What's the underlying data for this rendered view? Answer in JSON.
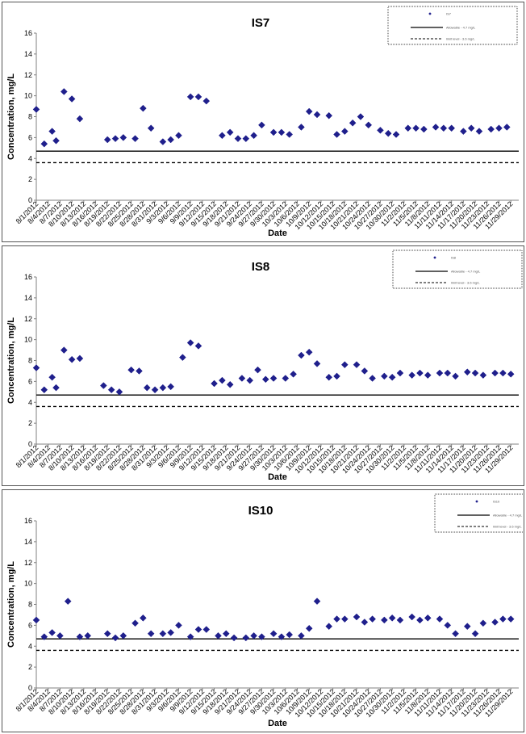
{
  "colors": {
    "marker": "#1f1f8c",
    "axis": "#808080",
    "line": "#000000"
  },
  "chart_data": [
    {
      "type": "scatter",
      "title": "IS7",
      "xlabel": "Date",
      "ylabel": "Concentration, mg/L",
      "ylim": [
        0,
        16
      ],
      "yticks": [
        0,
        2,
        4,
        6,
        8,
        10,
        12,
        14,
        16
      ],
      "grid": false,
      "legend_position": "top-right",
      "legend": [
        "IS7",
        "Allowable - 4.7 mg/L",
        "limit level - 3.6 mg/L"
      ],
      "reference_lines": [
        {
          "name": "Allowable - 4.7 mg/L",
          "value": 4.7,
          "style": "solid"
        },
        {
          "name": "limit level - 3.6 mg/L",
          "value": 3.6,
          "style": "dashed"
        }
      ],
      "xlim": [
        "8/1/2012",
        "12/1/2012"
      ],
      "x_tick_labels": [
        "8/1/2012",
        "8/4/2012",
        "8/7/2012",
        "8/10/2012",
        "8/13/2012",
        "8/16/2012",
        "8/19/2012",
        "8/22/2012",
        "8/25/2012",
        "8/28/2012",
        "8/31/2012",
        "9/3/2012",
        "9/6/2012",
        "9/9/2012",
        "9/12/2012",
        "9/15/2012",
        "9/18/2012",
        "9/21/2012",
        "9/24/2012",
        "9/27/2012",
        "9/30/2012",
        "10/3/2012",
        "10/6/2012",
        "10/9/2012",
        "10/12/2012",
        "10/15/2012",
        "10/18/2012",
        "10/21/2012",
        "10/24/2012",
        "10/27/2012",
        "10/30/2012",
        "11/2/2012",
        "11/5/2012",
        "11/8/2012",
        "11/11/2012",
        "11/14/2012",
        "11/17/2012",
        "11/20/2012",
        "11/23/2012",
        "11/26/2012",
        "11/29/2012"
      ],
      "series": [
        {
          "name": "IS7",
          "x": [
            "8/1/2012",
            "8/3/2012",
            "8/5/2012",
            "8/6/2012",
            "8/8/2012",
            "8/10/2012",
            "8/12/2012",
            "8/19/2012",
            "8/21/2012",
            "8/23/2012",
            "8/26/2012",
            "8/28/2012",
            "8/30/2012",
            "9/2/2012",
            "9/4/2012",
            "9/6/2012",
            "9/9/2012",
            "9/11/2012",
            "9/13/2012",
            "9/17/2012",
            "9/19/2012",
            "9/21/2012",
            "9/23/2012",
            "9/25/2012",
            "9/27/2012",
            "9/30/2012",
            "10/2/2012",
            "10/4/2012",
            "10/7/2012",
            "10/9/2012",
            "10/11/2012",
            "10/14/2012",
            "10/16/2012",
            "10/18/2012",
            "10/20/2012",
            "10/22/2012",
            "10/24/2012",
            "10/27/2012",
            "10/29/2012",
            "10/31/2012",
            "11/3/2012",
            "11/5/2012",
            "11/7/2012",
            "11/10/2012",
            "11/12/2012",
            "11/14/2012",
            "11/17/2012",
            "11/19/2012",
            "11/21/2012",
            "11/24/2012",
            "11/26/2012",
            "11/28/2012"
          ],
          "y": [
            8.7,
            5.4,
            6.6,
            5.7,
            10.4,
            9.7,
            7.8,
            5.8,
            5.9,
            6.0,
            5.9,
            8.8,
            6.9,
            5.6,
            5.8,
            6.2,
            9.9,
            9.9,
            9.5,
            6.2,
            6.5,
            5.9,
            5.9,
            6.2,
            7.2,
            6.5,
            6.5,
            6.3,
            7.0,
            8.5,
            8.2,
            8.1,
            6.3,
            6.6,
            7.4,
            8.0,
            7.2,
            6.7,
            6.4,
            6.3,
            6.9,
            6.9,
            6.8,
            7.0,
            6.9,
            6.9,
            6.6,
            6.9,
            6.6,
            6.8,
            6.9,
            7.0
          ]
        }
      ]
    },
    {
      "type": "scatter",
      "title": "IS8",
      "xlabel": "Date",
      "ylabel": "Concentration, mg/L",
      "ylim": [
        0,
        16
      ],
      "yticks": [
        0,
        2,
        4,
        6,
        8,
        10,
        12,
        14,
        16
      ],
      "grid": false,
      "legend_position": "top-right",
      "legend": [
        "IS8",
        "Allowable - 4.7 mg/L",
        "limit level - 3.6 mg/L"
      ],
      "reference_lines": [
        {
          "name": "Allowable - 4.7 mg/L",
          "value": 4.7,
          "style": "solid"
        },
        {
          "name": "limit level - 3.6 mg/L",
          "value": 3.6,
          "style": "dashed"
        }
      ],
      "xlim": [
        "8/1/2012",
        "12/1/2012"
      ],
      "x_tick_labels": [
        "8/1/2012",
        "8/4/2012",
        "8/7/2012",
        "8/10/2012",
        "8/13/2012",
        "8/16/2012",
        "8/19/2012",
        "8/22/2012",
        "8/25/2012",
        "8/28/2012",
        "8/31/2012",
        "9/3/2012",
        "9/6/2012",
        "9/9/2012",
        "9/12/2012",
        "9/15/2012",
        "9/18/2012",
        "9/21/2012",
        "9/24/2012",
        "9/27/2012",
        "9/30/2012",
        "10/3/2012",
        "10/6/2012",
        "10/9/2012",
        "10/12/2012",
        "10/15/2012",
        "10/18/2012",
        "10/21/2012",
        "10/24/2012",
        "10/27/2012",
        "10/30/2012",
        "11/2/2012",
        "11/5/2012",
        "11/8/2012",
        "11/11/2012",
        "11/14/2012",
        "11/17/2012",
        "11/20/2012",
        "11/23/2012",
        "11/26/2012",
        "11/29/2012"
      ],
      "series": [
        {
          "name": "IS8",
          "x": [
            "8/1/2012",
            "8/3/2012",
            "8/5/2012",
            "8/6/2012",
            "8/8/2012",
            "8/10/2012",
            "8/12/2012",
            "8/18/2012",
            "8/20/2012",
            "8/22/2012",
            "8/25/2012",
            "8/27/2012",
            "8/29/2012",
            "8/31/2012",
            "9/2/2012",
            "9/4/2012",
            "9/7/2012",
            "9/9/2012",
            "9/11/2012",
            "9/15/2012",
            "9/17/2012",
            "9/19/2012",
            "9/22/2012",
            "9/24/2012",
            "9/26/2012",
            "9/28/2012",
            "9/30/2012",
            "10/3/2012",
            "10/5/2012",
            "10/7/2012",
            "10/9/2012",
            "10/11/2012",
            "10/14/2012",
            "10/16/2012",
            "10/18/2012",
            "10/21/2012",
            "10/23/2012",
            "10/25/2012",
            "10/28/2012",
            "10/30/2012",
            "11/1/2012",
            "11/4/2012",
            "11/6/2012",
            "11/8/2012",
            "11/11/2012",
            "11/13/2012",
            "11/15/2012",
            "11/18/2012",
            "11/20/2012",
            "11/22/2012",
            "11/25/2012",
            "11/27/2012",
            "11/29/2012"
          ],
          "y": [
            7.3,
            5.2,
            6.4,
            5.4,
            9.0,
            8.1,
            8.2,
            5.6,
            5.2,
            5.0,
            7.1,
            7.0,
            5.4,
            5.2,
            5.4,
            5.5,
            8.3,
            9.7,
            9.4,
            5.8,
            6.1,
            5.7,
            6.3,
            6.1,
            7.1,
            6.2,
            6.3,
            6.3,
            6.7,
            8.5,
            8.8,
            7.7,
            6.4,
            6.5,
            7.6,
            7.6,
            7.0,
            6.3,
            6.5,
            6.4,
            6.8,
            6.6,
            6.8,
            6.6,
            6.8,
            6.8,
            6.5,
            6.9,
            6.8,
            6.6,
            6.8,
            6.8,
            6.7
          ]
        }
      ]
    },
    {
      "type": "scatter",
      "title": "IS10",
      "xlabel": "Date",
      "ylabel": "Concentration, mg/L",
      "ylim": [
        0,
        16
      ],
      "yticks": [
        0,
        2,
        4,
        6,
        8,
        10,
        12,
        14,
        16
      ],
      "grid": false,
      "legend_position": "top-right",
      "legend": [
        "IS10",
        "Allowable - 4.7 mg/L",
        "limit level - 3.6 mg/L"
      ],
      "reference_lines": [
        {
          "name": "Allowable - 4.7 mg/L",
          "value": 4.7,
          "style": "solid"
        },
        {
          "name": "limit level - 3.6 mg/L",
          "value": 3.6,
          "style": "dashed"
        }
      ],
      "xlim": [
        "8/1/2012",
        "12/1/2012"
      ],
      "x_tick_labels": [
        "8/1/2012",
        "8/4/2012",
        "8/7/2012",
        "8/10/2012",
        "8/13/2012",
        "8/16/2012",
        "8/19/2012",
        "8/22/2012",
        "8/25/2012",
        "8/28/2012",
        "8/31/2012",
        "9/3/2012",
        "9/6/2012",
        "9/9/2012",
        "9/12/2012",
        "9/15/2012",
        "9/18/2012",
        "9/21/2012",
        "9/24/2012",
        "9/27/2012",
        "9/30/2012",
        "10/3/2012",
        "10/6/2012",
        "10/9/2012",
        "10/12/2012",
        "10/15/2012",
        "10/18/2012",
        "10/21/2012",
        "10/24/2012",
        "10/27/2012",
        "10/30/2012",
        "11/2/2012",
        "11/5/2012",
        "11/8/2012",
        "11/11/2012",
        "11/14/2012",
        "11/17/2012",
        "11/20/2012",
        "11/23/2012",
        "11/26/2012",
        "11/29/2012"
      ],
      "series": [
        {
          "name": "IS10",
          "x": [
            "8/1/2012",
            "8/3/2012",
            "8/5/2012",
            "8/7/2012",
            "8/9/2012",
            "8/12/2012",
            "8/14/2012",
            "8/19/2012",
            "8/21/2012",
            "8/23/2012",
            "8/26/2012",
            "8/28/2012",
            "8/30/2012",
            "9/2/2012",
            "9/4/2012",
            "9/6/2012",
            "9/9/2012",
            "9/11/2012",
            "9/13/2012",
            "9/16/2012",
            "9/18/2012",
            "9/20/2012",
            "9/23/2012",
            "9/25/2012",
            "9/27/2012",
            "9/30/2012",
            "10/2/2012",
            "10/4/2012",
            "10/7/2012",
            "10/9/2012",
            "10/11/2012",
            "10/14/2012",
            "10/16/2012",
            "10/18/2012",
            "10/21/2012",
            "10/23/2012",
            "10/25/2012",
            "10/28/2012",
            "10/30/2012",
            "11/1/2012",
            "11/4/2012",
            "11/6/2012",
            "11/8/2012",
            "11/11/2012",
            "11/13/2012",
            "11/15/2012",
            "11/18/2012",
            "11/20/2012",
            "11/22/2012",
            "11/25/2012",
            "11/27/2012",
            "11/29/2012"
          ],
          "y": [
            6.5,
            4.9,
            5.3,
            5.0,
            8.3,
            4.9,
            5.0,
            5.2,
            4.8,
            5.0,
            6.2,
            6.7,
            5.2,
            5.2,
            5.3,
            6.0,
            4.9,
            5.6,
            5.6,
            5.0,
            5.2,
            4.8,
            4.8,
            5.0,
            4.9,
            5.2,
            4.9,
            5.1,
            5.0,
            5.7,
            8.3,
            5.9,
            6.6,
            6.6,
            6.8,
            6.3,
            6.6,
            6.5,
            6.7,
            6.5,
            6.8,
            6.5,
            6.7,
            6.6,
            6.0,
            5.2,
            5.9,
            5.2,
            6.2,
            6.3,
            6.6,
            6.6
          ]
        }
      ]
    }
  ]
}
